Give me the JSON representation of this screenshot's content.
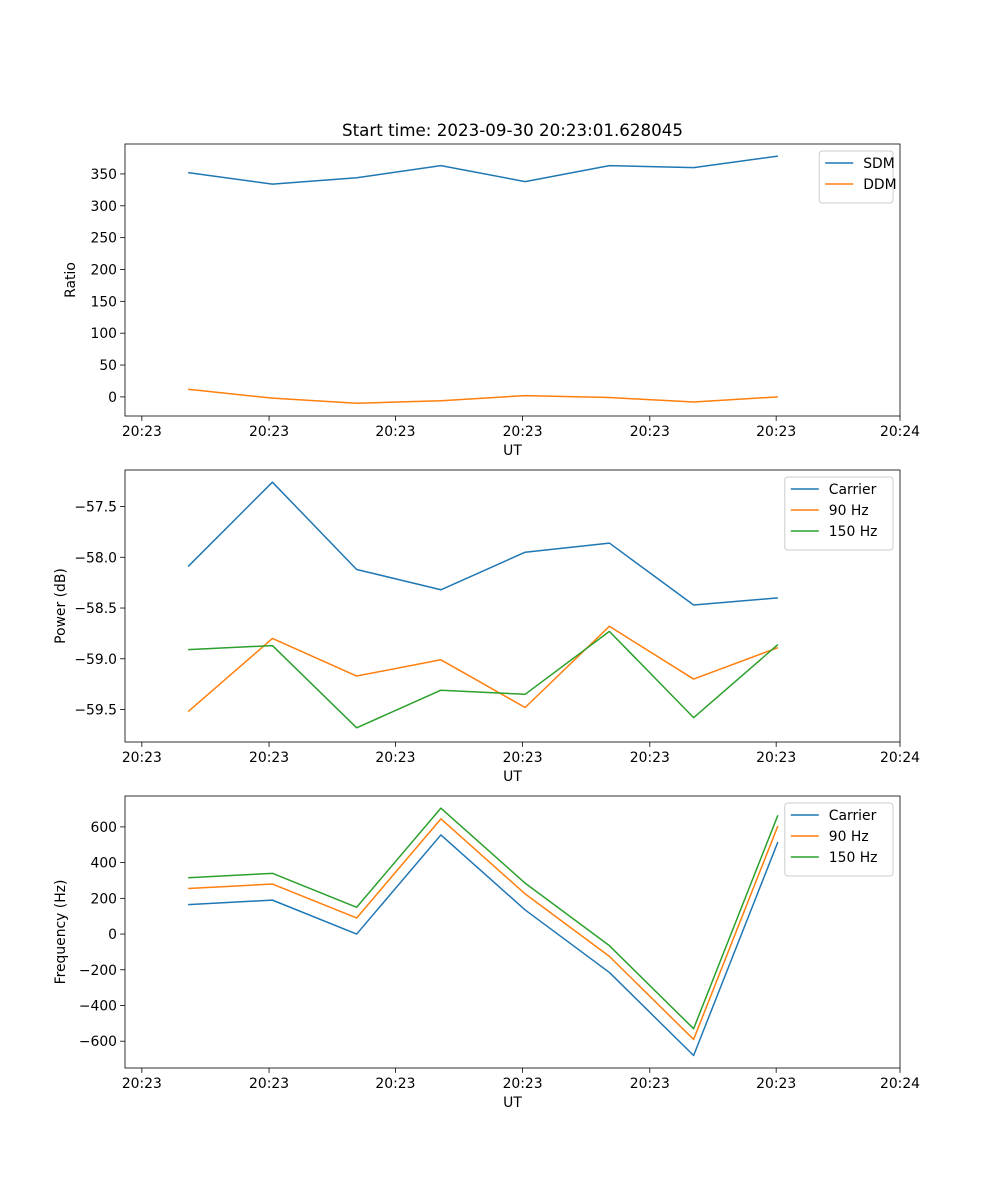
{
  "figure_title": "Start time: 2023-09-30 20:23:01.628045",
  "colors": {
    "blue": "#1f77b4",
    "orange": "#ff7f0e",
    "green": "#2ca02c",
    "frame": "#000000"
  },
  "chart_data": [
    {
      "type": "line",
      "title": "Start time: 2023-09-30 20:23:01.628045",
      "xlabel": "UT",
      "ylabel": "Ratio",
      "x": [
        1,
        2,
        3,
        4,
        5,
        6,
        7,
        8
      ],
      "xlim": [
        0.25,
        9.45
      ],
      "xticks": [
        0.45,
        1.96,
        3.46,
        4.97,
        6.48,
        7.98,
        9.45
      ],
      "xtick_labels": [
        "20:23",
        "20:23",
        "20:23",
        "20:23",
        "20:23",
        "20:23",
        "20:24"
      ],
      "ylim": [
        -30,
        397
      ],
      "yticks": [
        0,
        50,
        100,
        150,
        200,
        250,
        300,
        350
      ],
      "ytick_labels": [
        "0",
        "50",
        "100",
        "150",
        "200",
        "250",
        "300",
        "350"
      ],
      "legend_position": "upper right",
      "series": [
        {
          "name": "SDM",
          "color": "#1f77b4",
          "values": [
            352,
            334,
            344,
            363,
            338,
            363,
            360,
            378
          ]
        },
        {
          "name": "DDM",
          "color": "#ff7f0e",
          "values": [
            12,
            -2,
            -10,
            -6,
            2,
            -1,
            -8,
            0
          ]
        }
      ]
    },
    {
      "type": "line",
      "title": "",
      "xlabel": "UT",
      "ylabel": "Power (dB)",
      "x": [
        1,
        2,
        3,
        4,
        5,
        6,
        7,
        8
      ],
      "xlim": [
        0.25,
        9.45
      ],
      "xticks": [
        0.45,
        1.96,
        3.46,
        4.97,
        6.48,
        7.98,
        9.45
      ],
      "xtick_labels": [
        "20:23",
        "20:23",
        "20:23",
        "20:23",
        "20:23",
        "20:23",
        "20:24"
      ],
      "ylim": [
        -59.82,
        -57.14
      ],
      "yticks": [
        -59.5,
        -59.0,
        -58.5,
        -58.0,
        -57.5
      ],
      "ytick_labels": [
        "−59.5",
        "−59.0",
        "−58.5",
        "−58.0",
        "−57.5"
      ],
      "legend_position": "upper right",
      "series": [
        {
          "name": "Carrier",
          "color": "#1f77b4",
          "values": [
            -58.09,
            -57.26,
            -58.12,
            -58.32,
            -57.95,
            -57.86,
            -58.47,
            -58.4
          ]
        },
        {
          "name": "90 Hz",
          "color": "#ff7f0e",
          "values": [
            -59.52,
            -58.8,
            -59.17,
            -59.01,
            -59.48,
            -58.68,
            -59.2,
            -58.89
          ]
        },
        {
          "name": "150 Hz",
          "color": "#2ca02c",
          "values": [
            -58.91,
            -58.87,
            -59.68,
            -59.31,
            -59.35,
            -58.73,
            -59.58,
            -58.86
          ]
        }
      ]
    },
    {
      "type": "line",
      "title": "",
      "xlabel": "UT",
      "ylabel": "Frequency (Hz)",
      "x": [
        1,
        2,
        3,
        4,
        5,
        6,
        7,
        8
      ],
      "xlim": [
        0.25,
        9.45
      ],
      "xticks": [
        0.45,
        1.96,
        3.46,
        4.97,
        6.48,
        7.98,
        9.45
      ],
      "xtick_labels": [
        "20:23",
        "20:23",
        "20:23",
        "20:23",
        "20:23",
        "20:23",
        "20:24"
      ],
      "ylim": [
        -750,
        773
      ],
      "yticks": [
        -600,
        -400,
        -200,
        0,
        200,
        400,
        600
      ],
      "ytick_labels": [
        "−600",
        "−400",
        "−200",
        "0",
        "200",
        "400",
        "600"
      ],
      "legend_position": "upper right",
      "series": [
        {
          "name": "Carrier",
          "color": "#1f77b4",
          "values": [
            165,
            190,
            0,
            555,
            135,
            -215,
            -680,
            515
          ]
        },
        {
          "name": "90 Hz",
          "color": "#ff7f0e",
          "values": [
            255,
            280,
            90,
            645,
            225,
            -125,
            -590,
            605
          ]
        },
        {
          "name": "150 Hz",
          "color": "#2ca02c",
          "values": [
            315,
            340,
            150,
            705,
            285,
            -65,
            -530,
            665
          ]
        }
      ]
    }
  ]
}
